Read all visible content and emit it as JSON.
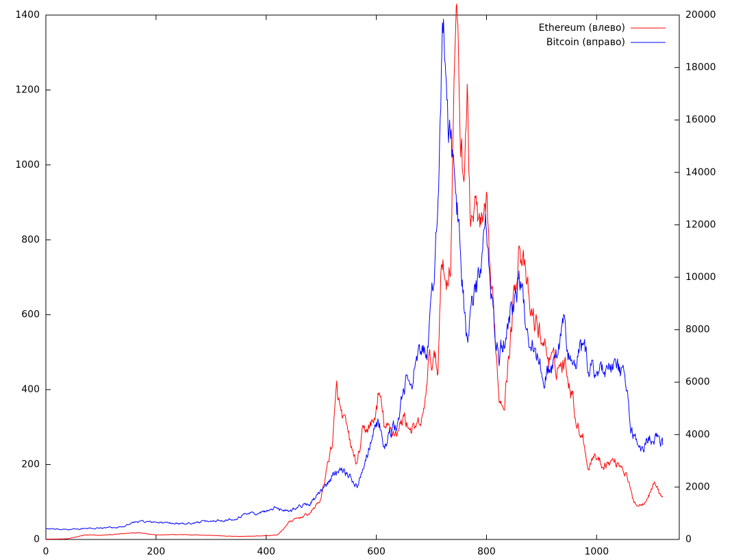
{
  "chart_data": {
    "type": "line",
    "title": "",
    "xlabel": "",
    "ylabel": "",
    "y2label": "",
    "grid": false,
    "legend": "top-right",
    "xlim": [
      0,
      1150
    ],
    "ylim": [
      0,
      1400
    ],
    "y2lim": [
      0,
      20000
    ],
    "xticks": [
      0,
      200,
      400,
      600,
      800,
      1000
    ],
    "yticks": [
      0,
      200,
      400,
      600,
      800,
      1000,
      1200,
      1400
    ],
    "y2ticks": [
      0,
      2000,
      4000,
      6000,
      8000,
      10000,
      12000,
      14000,
      16000,
      18000,
      20000
    ],
    "series": [
      {
        "name": "Ethereum (влево)",
        "axis": "left",
        "color": "#ff0000",
        "points": [
          [
            0,
            1
          ],
          [
            20,
            1
          ],
          [
            40,
            2
          ],
          [
            60,
            8
          ],
          [
            70,
            12
          ],
          [
            100,
            11
          ],
          [
            130,
            14
          ],
          [
            160,
            18
          ],
          [
            170,
            19
          ],
          [
            200,
            12
          ],
          [
            250,
            13
          ],
          [
            300,
            11
          ],
          [
            340,
            8
          ],
          [
            380,
            9
          ],
          [
            400,
            10
          ],
          [
            420,
            12
          ],
          [
            430,
            25
          ],
          [
            440,
            45
          ],
          [
            460,
            58
          ],
          [
            480,
            70
          ],
          [
            500,
            110
          ],
          [
            510,
            190
          ],
          [
            520,
            260
          ],
          [
            528,
            395
          ],
          [
            535,
            340
          ],
          [
            545,
            300
          ],
          [
            555,
            240
          ],
          [
            565,
            200
          ],
          [
            575,
            280
          ],
          [
            585,
            300
          ],
          [
            595,
            310
          ],
          [
            605,
            390
          ],
          [
            615,
            300
          ],
          [
            625,
            290
          ],
          [
            640,
            290
          ],
          [
            650,
            330
          ],
          [
            660,
            300
          ],
          [
            670,
            290
          ],
          [
            685,
            320
          ],
          [
            695,
            470
          ],
          [
            705,
            480
          ],
          [
            712,
            450
          ],
          [
            718,
            780
          ],
          [
            725,
            680
          ],
          [
            735,
            750
          ],
          [
            742,
            1280
          ],
          [
            748,
            1380
          ],
          [
            752,
            1100
          ],
          [
            758,
            960
          ],
          [
            765,
            1200
          ],
          [
            770,
            860
          ],
          [
            780,
            880
          ],
          [
            790,
            820
          ],
          [
            800,
            850
          ],
          [
            808,
            680
          ],
          [
            815,
            560
          ],
          [
            823,
            380
          ],
          [
            833,
            380
          ],
          [
            843,
            530
          ],
          [
            853,
            700
          ],
          [
            860,
            810
          ],
          [
            870,
            700
          ],
          [
            880,
            600
          ],
          [
            895,
            560
          ],
          [
            905,
            520
          ],
          [
            915,
            480
          ],
          [
            925,
            460
          ],
          [
            935,
            470
          ],
          [
            945,
            460
          ],
          [
            955,
            400
          ],
          [
            965,
            300
          ],
          [
            975,
            280
          ],
          [
            985,
            190
          ],
          [
            995,
            230
          ],
          [
            1010,
            200
          ],
          [
            1030,
            210
          ],
          [
            1045,
            200
          ],
          [
            1055,
            170
          ],
          [
            1065,
            110
          ],
          [
            1075,
            90
          ],
          [
            1085,
            100
          ],
          [
            1095,
            120
          ],
          [
            1105,
            155
          ],
          [
            1115,
            120
          ],
          [
            1120,
            115
          ]
        ]
      },
      {
        "name": "Bitcoin (вправо)",
        "axis": "right",
        "color": "#0000ff",
        "points": [
          [
            0,
            420
          ],
          [
            20,
            380
          ],
          [
            40,
            380
          ],
          [
            60,
            400
          ],
          [
            80,
            420
          ],
          [
            100,
            440
          ],
          [
            130,
            450
          ],
          [
            160,
            650
          ],
          [
            170,
            700
          ],
          [
            200,
            650
          ],
          [
            250,
            600
          ],
          [
            300,
            700
          ],
          [
            340,
            780
          ],
          [
            360,
            950
          ],
          [
            370,
            1050
          ],
          [
            385,
            950
          ],
          [
            400,
            1100
          ],
          [
            420,
            1200
          ],
          [
            440,
            1100
          ],
          [
            460,
            1250
          ],
          [
            480,
            1400
          ],
          [
            500,
            1800
          ],
          [
            520,
            2400
          ],
          [
            535,
            2800
          ],
          [
            545,
            2600
          ],
          [
            555,
            2300
          ],
          [
            565,
            2000
          ],
          [
            575,
            2800
          ],
          [
            585,
            3400
          ],
          [
            595,
            4200
          ],
          [
            605,
            4500
          ],
          [
            615,
            3500
          ],
          [
            625,
            4000
          ],
          [
            640,
            4500
          ],
          [
            650,
            5800
          ],
          [
            660,
            6000
          ],
          [
            670,
            6500
          ],
          [
            685,
            7200
          ],
          [
            695,
            7500
          ],
          [
            705,
            10000
          ],
          [
            712,
            13500
          ],
          [
            718,
            17500
          ],
          [
            722,
            19300
          ],
          [
            728,
            16500
          ],
          [
            735,
            14800
          ],
          [
            742,
            14000
          ],
          [
            748,
            12500
          ],
          [
            752,
            11000
          ],
          [
            758,
            9500
          ],
          [
            765,
            7500
          ],
          [
            770,
            8500
          ],
          [
            780,
            9200
          ],
          [
            790,
            10500
          ],
          [
            798,
            11600
          ],
          [
            805,
            10500
          ],
          [
            815,
            7800
          ],
          [
            823,
            7000
          ],
          [
            833,
            7500
          ],
          [
            843,
            8800
          ],
          [
            853,
            9400
          ],
          [
            860,
            9700
          ],
          [
            870,
            8500
          ],
          [
            880,
            7700
          ],
          [
            895,
            6700
          ],
          [
            905,
            6300
          ],
          [
            915,
            6500
          ],
          [
            925,
            6800
          ],
          [
            935,
            7700
          ],
          [
            940,
            8400
          ],
          [
            950,
            7000
          ],
          [
            960,
            6500
          ],
          [
            970,
            7100
          ],
          [
            978,
            7300
          ],
          [
            985,
            6400
          ],
          [
            995,
            6600
          ],
          [
            1010,
            6500
          ],
          [
            1025,
            6500
          ],
          [
            1040,
            6400
          ],
          [
            1050,
            6300
          ],
          [
            1055,
            5600
          ],
          [
            1062,
            4200
          ],
          [
            1070,
            3900
          ],
          [
            1080,
            3300
          ],
          [
            1090,
            3800
          ],
          [
            1100,
            3900
          ],
          [
            1108,
            3950
          ],
          [
            1115,
            3600
          ],
          [
            1120,
            3600
          ]
        ]
      }
    ]
  }
}
